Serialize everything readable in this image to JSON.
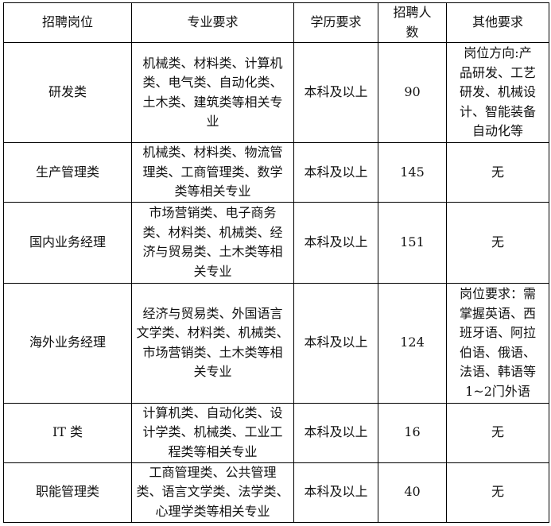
{
  "headers": [
    "招聘岗位",
    "专业要求",
    "学历要求",
    "招聘人\n数",
    "其他要求"
  ],
  "rows": [
    {
      "position": "研发类",
      "major": "机械类、材料类、计算机\n类、电气类、自动化类、\n土木类、建筑类等相关专\n业",
      "education": "本科及以上",
      "count": "90",
      "other": "岗位方向:产\n品研发、工艺\n研发、机械设\n计、智能装备\n自动化等"
    },
    {
      "position": "生产管理类",
      "major": "机械类、材料类、物流管\n理类、工商管理类、数学\n类等相关专业",
      "education": "本科及以上",
      "count": "145",
      "other": "无"
    },
    {
      "position": "国内业务经理",
      "major": "市场营销类、电子商务\n类、材料类、机械类、经\n济与贸易类、土木类等相\n关专业",
      "education": "本科及以上",
      "count": "151",
      "other": "无"
    },
    {
      "position": "海外业务经理",
      "major": "经济与贸易类、外国语言\n文学类、材料类、机械类、\n市场营销类、土木类等相\n关专业",
      "education": "本科及以上",
      "count": "124",
      "other": "岗位要求：需\n掌握英语、西\n班牙语、阿拉\n伯语、俄语、\n法语、韩语等\n1~2门外语"
    },
    {
      "position": "IT 类",
      "major": "计算机类、自动化类、设\n计学类、机械类、工业工\n程类等相关专业",
      "education": "本科及以上",
      "count": "16",
      "other": "无"
    },
    {
      "position": "职能管理类",
      "major": "工商管理类、公共管理\n类、语言文学类、法学类、\n心理学类等相关专业",
      "education": "本科及以上",
      "count": "40",
      "other": "无"
    }
  ]
}
